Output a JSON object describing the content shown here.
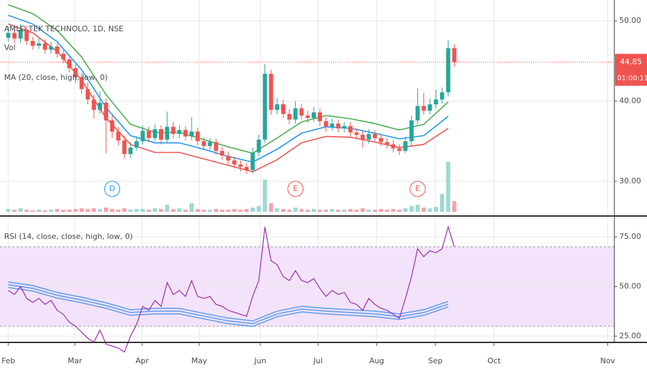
{
  "chart_data": [
    {
      "type": "candlestick",
      "title": "AMLD TEK TECHNOLO, 1D, NSE",
      "indicator_labels": [
        "Vol",
        "MA (20, close, high, low, 0)"
      ],
      "open": [
        47.9,
        48.5,
        47.8,
        48.9,
        47.5,
        46.9,
        47.2,
        46.4,
        46.8,
        45.9,
        45.2,
        44.1,
        43.0,
        41.5,
        40.2,
        38.9,
        39.8,
        37.6,
        36.2,
        35.1,
        33.4,
        34.2,
        35.0,
        36.3,
        35.4,
        36.5,
        35.2,
        36.8,
        35.9,
        36.4,
        35.6,
        36.2,
        35.0,
        34.4,
        34.9,
        33.8,
        33.2,
        32.6,
        32.1,
        31.8,
        31.4,
        33.6,
        35.2,
        43.4,
        38.9,
        39.6,
        38.4,
        37.7,
        39.1,
        38.2,
        37.9,
        38.6,
        37.5,
        36.8,
        37.2,
        36.6,
        36.9,
        36.1,
        35.8,
        35.2,
        35.9,
        35.4,
        34.9,
        34.6,
        34.1,
        33.8,
        35.0,
        37.6,
        39.4,
        38.8,
        39.6,
        40.2,
        41.1,
        46.6
      ],
      "high": [
        49.3,
        49.0,
        49.6,
        49.4,
        48.0,
        47.8,
        47.7,
        47.4,
        47.2,
        46.4,
        45.8,
        44.6,
        43.5,
        42.3,
        40.8,
        41.2,
        40.3,
        38.2,
        36.8,
        35.7,
        34.9,
        35.6,
        36.9,
        36.8,
        37.1,
        37.0,
        38.7,
        37.4,
        37.0,
        36.9,
        38.0,
        36.7,
        35.5,
        35.4,
        35.3,
        34.3,
        33.7,
        33.1,
        32.6,
        32.3,
        34.2,
        35.8,
        44.6,
        43.9,
        40.4,
        40.2,
        39.0,
        40.0,
        39.7,
        38.8,
        39.3,
        39.1,
        38.0,
        37.8,
        37.7,
        37.4,
        37.4,
        36.6,
        36.3,
        36.5,
        36.4,
        35.9,
        35.4,
        35.1,
        34.6,
        35.6,
        38.2,
        41.6,
        41.0,
        40.3,
        41.4,
        41.7,
        47.6,
        47.1
      ],
      "low": [
        47.4,
        47.2,
        47.3,
        47.0,
        46.4,
        46.5,
        45.9,
        45.9,
        45.4,
        44.7,
        43.6,
        42.3,
        40.9,
        39.6,
        37.8,
        38.4,
        33.5,
        35.4,
        34.5,
        32.8,
        32.9,
        33.8,
        34.6,
        34.9,
        35.0,
        34.6,
        34.8,
        35.4,
        35.4,
        35.1,
        35.1,
        34.5,
        33.9,
        33.9,
        33.3,
        32.7,
        32.1,
        31.6,
        31.2,
        30.9,
        31.0,
        33.1,
        34.8,
        38.3,
        38.4,
        37.9,
        37.1,
        37.2,
        37.7,
        37.3,
        37.4,
        36.9,
        36.2,
        36.3,
        36.1,
        36.1,
        35.6,
        35.3,
        34.2,
        34.7,
        34.9,
        34.4,
        34.1,
        33.6,
        33.3,
        33.5,
        34.5,
        37.1,
        38.3,
        38.3,
        39.1,
        39.7,
        40.6,
        44.3
      ],
      "close": [
        48.5,
        47.8,
        48.9,
        47.5,
        46.9,
        47.2,
        46.4,
        46.8,
        45.9,
        45.2,
        44.1,
        43.0,
        41.5,
        40.2,
        38.9,
        39.8,
        37.6,
        36.2,
        35.1,
        33.4,
        34.2,
        35.0,
        36.3,
        35.4,
        36.5,
        35.2,
        36.8,
        35.9,
        36.4,
        35.6,
        36.2,
        35.0,
        34.4,
        34.9,
        33.8,
        33.2,
        32.6,
        32.1,
        31.8,
        31.4,
        33.6,
        35.2,
        43.4,
        38.9,
        39.6,
        38.4,
        37.7,
        39.1,
        38.2,
        37.9,
        38.6,
        37.5,
        36.8,
        37.2,
        36.6,
        36.9,
        36.1,
        35.8,
        35.2,
        35.9,
        35.4,
        34.9,
        34.6,
        34.1,
        33.8,
        35.0,
        37.6,
        39.4,
        38.8,
        39.6,
        40.2,
        41.1,
        46.6,
        44.85
      ],
      "volume": [
        4,
        3,
        5,
        3,
        2,
        3,
        2,
        3,
        4,
        3,
        3,
        4,
        5,
        4,
        5,
        4,
        6,
        4,
        3,
        5,
        3,
        4,
        4,
        3,
        5,
        4,
        10,
        4,
        5,
        3,
        12,
        4,
        3,
        3,
        4,
        3,
        3,
        4,
        3,
        4,
        6,
        8,
        45,
        12,
        5,
        4,
        3,
        6,
        4,
        3,
        4,
        3,
        3,
        4,
        3,
        3,
        4,
        3,
        5,
        3,
        3,
        4,
        3,
        4,
        3,
        5,
        8,
        10,
        6,
        5,
        7,
        25,
        70,
        15
      ],
      "up_color": "#26a69a",
      "down_color": "#ef5350",
      "vol_up_color": "#9fd8d2",
      "vol_down_color": "#f5a3a8",
      "ma_x": [
        0,
        4,
        8,
        12,
        16,
        20,
        24,
        28,
        32,
        36,
        40,
        44,
        48,
        52,
        56,
        60,
        64,
        68,
        72
      ],
      "series": [
        {
          "color": "#4caf50",
          "values": [
            52.0,
            50.9,
            48.8,
            45.5,
            40.8,
            37.1,
            36.1,
            36.1,
            35.2,
            34.3,
            33.5,
            35.4,
            37.4,
            38.2,
            37.8,
            37.2,
            36.4,
            37.1,
            39.9
          ]
        },
        {
          "color": "#2196f3",
          "values": [
            50.7,
            49.6,
            47.4,
            43.9,
            39.2,
            35.7,
            34.8,
            34.8,
            34.0,
            33.1,
            32.4,
            34.0,
            36.0,
            36.8,
            36.6,
            36.0,
            35.3,
            35.7,
            38.1
          ]
        },
        {
          "color": "#ef5350",
          "values": [
            49.6,
            48.5,
            46.2,
            42.6,
            37.9,
            34.6,
            33.6,
            33.6,
            32.8,
            32.0,
            31.2,
            32.7,
            34.8,
            35.6,
            35.5,
            34.9,
            34.2,
            34.6,
            36.6
          ]
        }
      ],
      "last_price": 44.85,
      "countdown": "01:00:11",
      "events": [
        {
          "x": 17,
          "label": "D",
          "color": "#2196f3"
        },
        {
          "x": 47,
          "label": "E",
          "color": "#ef5350"
        },
        {
          "x": 67,
          "label": "E",
          "color": "#ef5350"
        }
      ],
      "xlim": [
        -1.36,
        99.2
      ],
      "xticks": [
        {
          "value": 0,
          "label": "Feb"
        },
        {
          "value": 10.9,
          "label": "Mar"
        },
        {
          "value": 21.9,
          "label": "Apr"
        },
        {
          "value": 31.25,
          "label": "May"
        },
        {
          "value": 41.25,
          "label": "Jun"
        },
        {
          "value": 50.7,
          "label": "Jul"
        },
        {
          "value": 60.3,
          "label": "Aug"
        },
        {
          "value": 69.9,
          "label": "Sep"
        },
        {
          "value": 79.5,
          "label": "Oct"
        },
        {
          "value": 98.1,
          "label": "Nov"
        }
      ],
      "ylim": [
        26.2,
        52.6
      ],
      "yticks": [
        {
          "value": 50,
          "label": "50.00"
        },
        {
          "value": 40,
          "label": "40.00"
        },
        {
          "value": 30,
          "label": "30.00"
        }
      ],
      "grid": true
    },
    {
      "type": "line",
      "title": "RSI (14, close, close, high, low, 0)",
      "values": [
        48,
        46,
        50,
        44,
        42,
        44,
        41,
        43,
        38,
        36,
        32,
        30,
        27,
        24,
        22,
        28,
        21,
        20,
        19,
        17,
        25,
        31,
        40,
        38,
        43,
        40,
        52,
        46,
        48,
        45,
        53,
        45,
        44,
        45,
        41,
        40,
        38,
        37,
        36,
        35,
        45,
        53,
        80,
        63,
        61,
        55,
        53,
        58,
        53,
        52,
        54,
        49,
        45,
        48,
        46,
        47,
        42,
        41,
        38,
        44,
        41,
        39,
        38,
        36,
        34,
        44,
        55,
        69,
        65,
        68,
        67,
        69,
        80,
        70
      ],
      "color": "#9c27b0",
      "ma_x": [
        0,
        4,
        8,
        12,
        16,
        20,
        24,
        28,
        32,
        36,
        40,
        44,
        48,
        52,
        56,
        60,
        64,
        68,
        72
      ],
      "series": [
        {
          "color": "#3d8ee8",
          "values": [
            50.9,
            49.1,
            45.6,
            43.2,
            40.4,
            36.9,
            37.6,
            37.6,
            35.1,
            32.7,
            31.3,
            36.2,
            38.6,
            37.6,
            36.9,
            36.2,
            34.8,
            36.9,
            41.1
          ]
        }
      ],
      "band": [
        30,
        70
      ],
      "band_color": "#f3e3fa",
      "xlim": [
        -1.36,
        99.2
      ],
      "ylim": [
        22.9,
        84.8
      ],
      "yticks": [
        {
          "value": 75,
          "label": "75.00"
        },
        {
          "value": 50,
          "label": "50.00"
        },
        {
          "value": 25,
          "label": "25.00"
        }
      ],
      "grid": true
    }
  ]
}
